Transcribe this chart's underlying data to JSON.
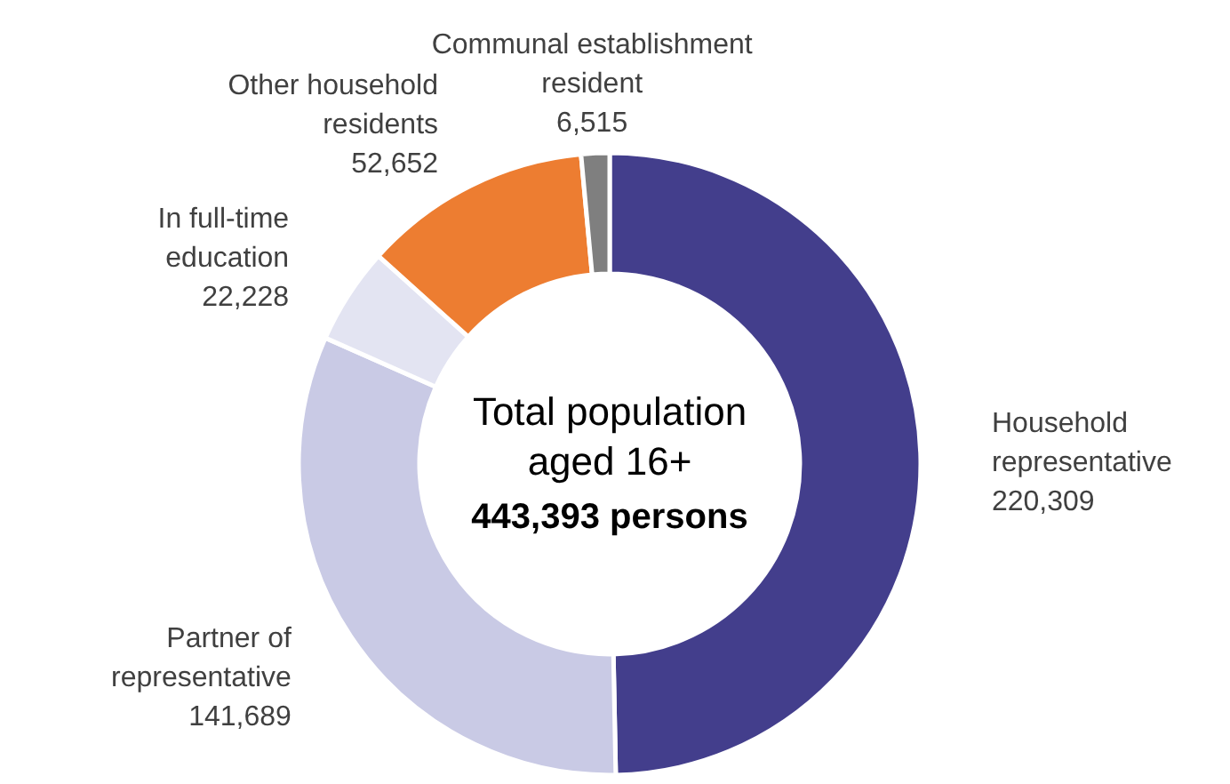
{
  "chart_data": {
    "type": "donut",
    "title": "Total population aged 16+",
    "subtitle": "443,393 persons",
    "categories": [
      "Household representative",
      "Partner of representative",
      "In full-time education",
      "Other household residents",
      "Communal establishment resident"
    ],
    "values": [
      220309,
      141689,
      22228,
      52652,
      6515
    ],
    "value_labels": [
      "220,309",
      "141,689",
      "22,228",
      "52,652",
      "6,515"
    ],
    "colors": [
      "#433e8c",
      "#c9cae5",
      "#e3e4f2",
      "#ed7d31",
      "#7f7f7f"
    ]
  }
}
